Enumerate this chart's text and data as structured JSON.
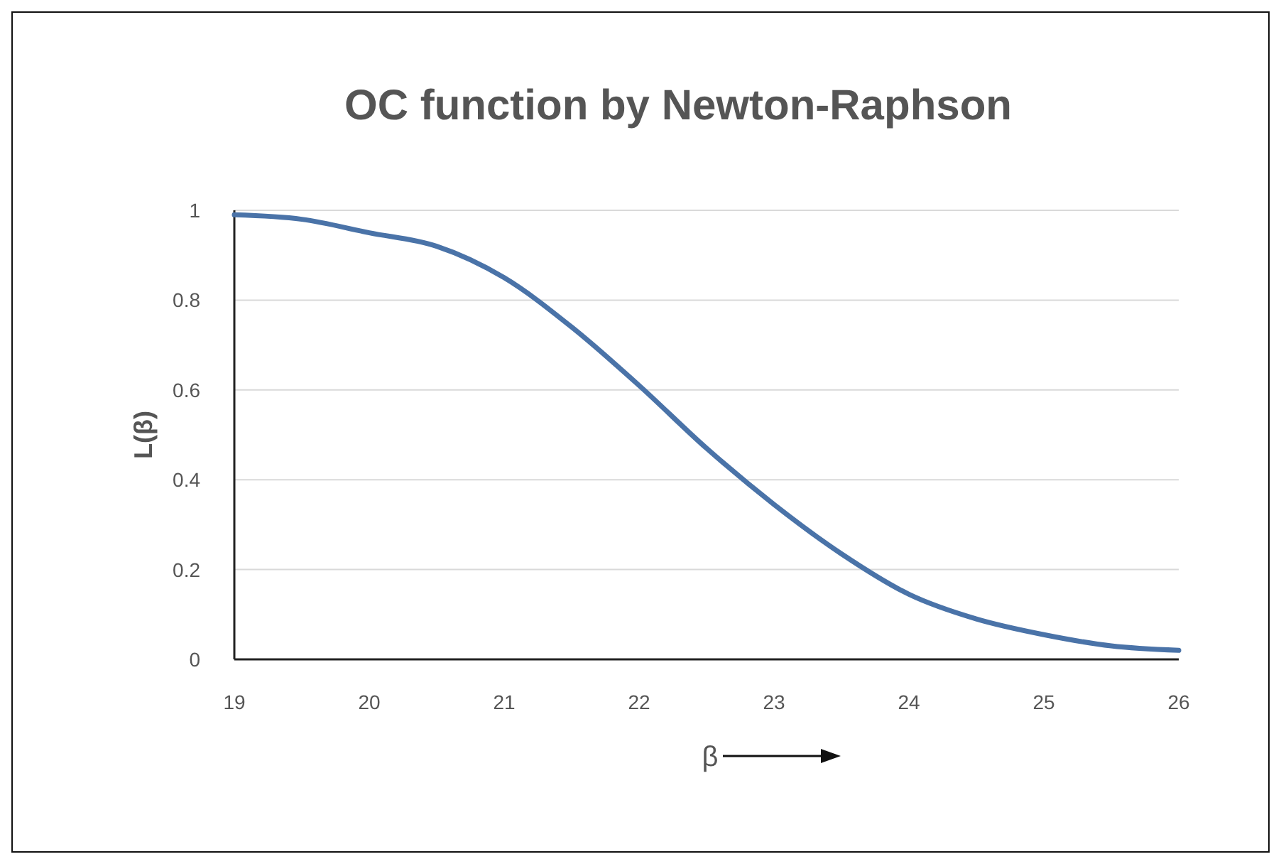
{
  "chart_data": {
    "type": "line",
    "title": "OC function by Newton-Raphson",
    "xlabel": "β",
    "ylabel": "L(β)",
    "x": [
      19,
      19.5,
      20,
      20.5,
      21,
      21.5,
      22,
      22.5,
      23,
      23.5,
      24,
      24.5,
      25,
      25.5,
      26
    ],
    "series": [
      {
        "color": "#4a73a8",
        "values": [
          0.99,
          0.98,
          0.95,
          0.92,
          0.85,
          0.74,
          0.61,
          0.47,
          0.345,
          0.235,
          0.145,
          0.09,
          0.055,
          0.03,
          0.02
        ]
      }
    ],
    "xlim": [
      19,
      26
    ],
    "xticks": [
      19,
      20,
      21,
      22,
      23,
      24,
      25,
      26
    ],
    "ylim": [
      0,
      1
    ],
    "yticks": [
      0,
      0.2,
      0.4,
      0.6,
      0.8,
      1
    ],
    "grid": "y",
    "marker": "none",
    "line_style": "solid"
  }
}
